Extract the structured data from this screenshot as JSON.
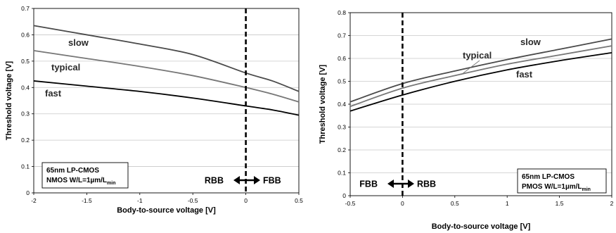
{
  "chart_data": [
    {
      "type": "line",
      "xlabel": "Body-to-source voltage [V]",
      "ylabel": "Threshold voltage [V]",
      "xlim": [
        -2,
        0.5
      ],
      "ylim": [
        0,
        0.7
      ],
      "xticks": [
        "-2",
        "-1.5",
        "-1",
        "-0.5",
        "0",
        "0.5"
      ],
      "yticks": [
        "0",
        "0.1",
        "0.2",
        "0.3",
        "0.4",
        "0.5",
        "0.6",
        "0.7"
      ],
      "grid": "horizontal",
      "series": [
        {
          "name": "slow",
          "color": "#4a4a4a",
          "x": [
            -2,
            -1.5,
            -1,
            -0.5,
            0,
            0.25,
            0.5
          ],
          "y": [
            0.635,
            0.6,
            0.565,
            0.525,
            0.455,
            0.425,
            0.385
          ]
        },
        {
          "name": "typical",
          "color": "#777777",
          "x": [
            -2,
            -1.5,
            -1,
            -0.5,
            0,
            0.25,
            0.5
          ],
          "y": [
            0.54,
            0.51,
            0.48,
            0.445,
            0.4,
            0.375,
            0.345
          ]
        },
        {
          "name": "fast",
          "color": "#000000",
          "x": [
            -2,
            -1.5,
            -1,
            -0.5,
            0,
            0.25,
            0.5
          ],
          "y": [
            0.425,
            0.405,
            0.385,
            0.36,
            0.33,
            0.315,
            0.295
          ]
        }
      ],
      "divider_x": 0,
      "bias_left": "RBB",
      "bias_right": "FBB",
      "box_line1": "65nm LP-CMOS",
      "box_line2_main": "NMOS W/L=1µm/L",
      "box_line2_sub": "min"
    },
    {
      "type": "line",
      "xlabel": "Body-to-source voltage [V]",
      "ylabel": "Threshold voltage [V]",
      "xlim": [
        -0.5,
        2
      ],
      "ylim": [
        0,
        0.8
      ],
      "xticks": [
        "-0.5",
        "0",
        "0.5",
        "1",
        "1.5",
        "2"
      ],
      "yticks": [
        "0",
        "0.1",
        "0.2",
        "0.3",
        "0.4",
        "0.5",
        "0.6",
        "0.7",
        "0.8"
      ],
      "grid": "horizontal",
      "series": [
        {
          "name": "slow",
          "color": "#4a4a4a",
          "x": [
            -0.5,
            0,
            0.5,
            1,
            1.5,
            2
          ],
          "y": [
            0.41,
            0.49,
            0.545,
            0.595,
            0.64,
            0.685
          ]
        },
        {
          "name": "typical",
          "color": "#777777",
          "x": [
            -0.5,
            0,
            0.5,
            1,
            1.5,
            2
          ],
          "y": [
            0.39,
            0.47,
            0.525,
            0.575,
            0.615,
            0.655
          ]
        },
        {
          "name": "fast",
          "color": "#000000",
          "x": [
            -0.5,
            0,
            0.5,
            1,
            1.5,
            2
          ],
          "y": [
            0.37,
            0.44,
            0.5,
            0.55,
            0.59,
            0.625
          ]
        }
      ],
      "divider_x": 0,
      "bias_left": "FBB",
      "bias_right": "RBB",
      "box_line1": "65nm LP-CMOS",
      "box_line2_main": "PMOS W/L=1µm/L",
      "box_line2_sub": "min"
    }
  ]
}
